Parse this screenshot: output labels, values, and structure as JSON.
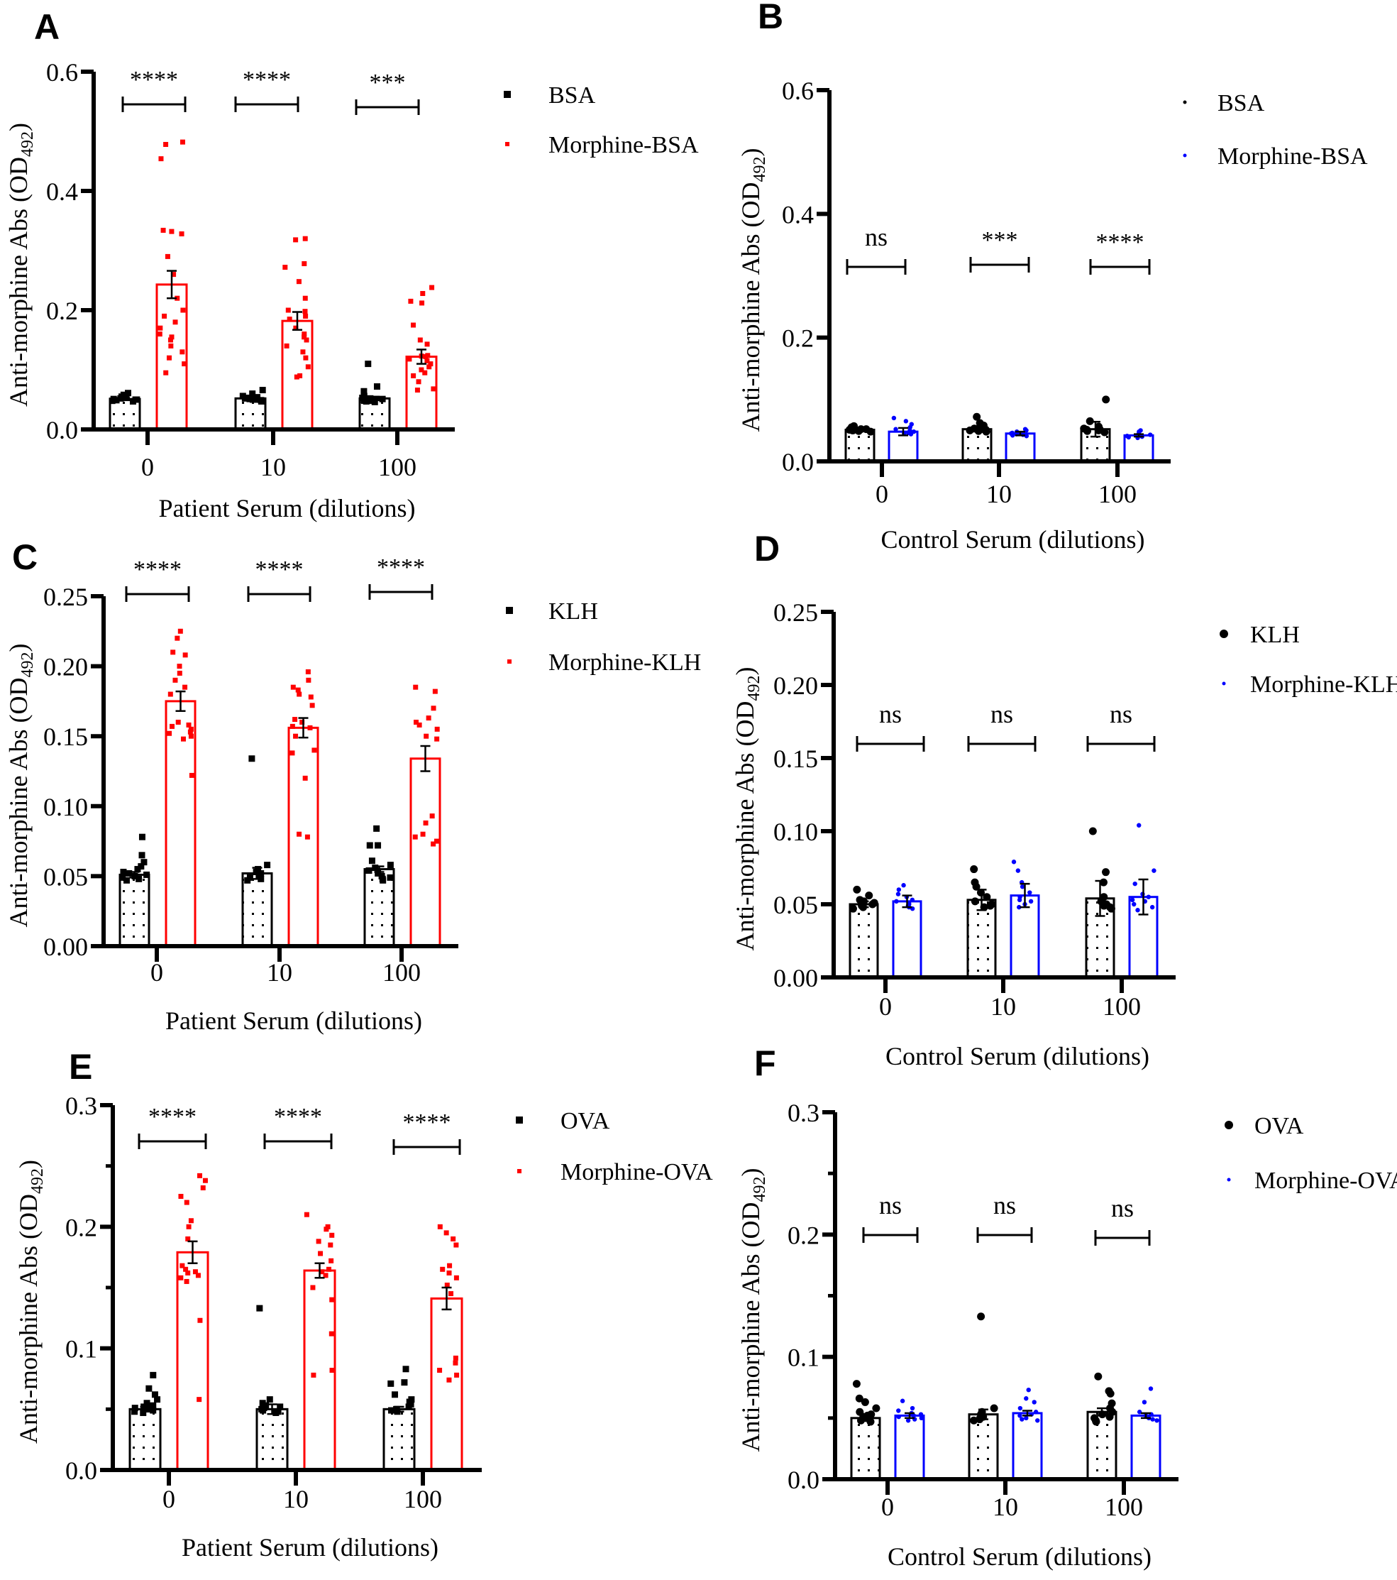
{
  "figure": {
    "panel_labels": [
      "A",
      "B",
      "C",
      "D",
      "E",
      "F"
    ]
  },
  "chart_data": [
    {
      "panel": "A",
      "type": "bar",
      "title": "",
      "xlabel": "Patient Serum (dilutions)",
      "ylabel": "Anti-morphine Abs (OD492)",
      "ylabel_main": "Anti-morphine Abs (OD",
      "ylabel_sub": "492",
      "ylim": [
        0,
        0.6
      ],
      "yticks": [
        "0.0",
        "0.2",
        "0.4",
        "0.6"
      ],
      "ytick_values": [
        0,
        0.2,
        0.4,
        0.6
      ],
      "yminor": [],
      "categories": [
        "0",
        "10",
        "100"
      ],
      "legend": "right",
      "series": [
        {
          "name": "BSA",
          "color": "#000000",
          "fill": "dotted",
          "marker": "square",
          "values": [
            0.051,
            0.052,
            0.052
          ],
          "sem": [
            0.002,
            0.002,
            0.003
          ],
          "points": [
            [
              0.048,
              0.05,
              0.051,
              0.053,
              0.055,
              0.058,
              0.061,
              0.049,
              0.052,
              0.054,
              0.05,
              0.047
            ],
            [
              0.048,
              0.05,
              0.052,
              0.053,
              0.056,
              0.06,
              0.066,
              0.049,
              0.051,
              0.054,
              0.05,
              0.047
            ],
            [
              0.047,
              0.049,
              0.051,
              0.053,
              0.056,
              0.064,
              0.072,
              0.11,
              0.05,
              0.052,
              0.048,
              0.046
            ]
          ]
        },
        {
          "name": "Morphine-BSA",
          "color": "#ff0000",
          "fill": "none",
          "marker": "square",
          "values": [
            0.243,
            0.182,
            0.122
          ],
          "sem": [
            0.023,
            0.015,
            0.012
          ],
          "points": [
            [
              0.478,
              0.482,
              0.454,
              0.334,
              0.332,
              0.328,
              0.29,
              0.26,
              0.22,
              0.2,
              0.19,
              0.18,
              0.17,
              0.16,
              0.155,
              0.15,
              0.14,
              0.13,
              0.12,
              0.11,
              0.095
            ],
            [
              0.318,
              0.32,
              0.278,
              0.272,
              0.248,
              0.22,
              0.2,
              0.198,
              0.19,
              0.185,
              0.17,
              0.16,
              0.155,
              0.15,
              0.14,
              0.13,
              0.12,
              0.105,
              0.09,
              0.088
            ],
            [
              0.238,
              0.228,
              0.215,
              0.212,
              0.175,
              0.15,
              0.143,
              0.124,
              0.123,
              0.122,
              0.118,
              0.115,
              0.11,
              0.105,
              0.1,
              0.095,
              0.09,
              0.08,
              0.068,
              0.066
            ]
          ]
        }
      ],
      "significance": [
        "****",
        "****",
        "***"
      ]
    },
    {
      "panel": "B",
      "type": "bar",
      "title": "",
      "xlabel": "Control Serum (dilutions)",
      "ylabel": "Anti-morphine Abs (OD492)",
      "ylabel_main": "Anti-morphine Abs (OD",
      "ylabel_sub": "492",
      "ylim": [
        0,
        0.6
      ],
      "yticks": [
        "0.0",
        "0.2",
        "0.4",
        "0.6"
      ],
      "ytick_values": [
        0,
        0.2,
        0.4,
        0.6
      ],
      "yminor": [],
      "categories": [
        "0",
        "10",
        "100"
      ],
      "legend": "top-right",
      "series": [
        {
          "name": "BSA",
          "color": "#000000",
          "fill": "dotted",
          "marker": "circle",
          "values": [
            0.051,
            0.052,
            0.052
          ],
          "sem": [
            0.002,
            0.003,
            0.012
          ],
          "points": [
            [
              0.048,
              0.05,
              0.051,
              0.052,
              0.053,
              0.055,
              0.057,
              0.049,
              0.05,
              0.052
            ],
            [
              0.048,
              0.05,
              0.052,
              0.054,
              0.058,
              0.062,
              0.072,
              0.049,
              0.051,
              0.053
            ],
            [
              0.047,
              0.049,
              0.051,
              0.053,
              0.056,
              0.065,
              0.1,
              0.05,
              0.052
            ]
          ]
        },
        {
          "name": "Morphine-BSA",
          "color": "#0000ff",
          "fill": "none",
          "marker": "circle",
          "values": [
            0.048,
            0.045,
            0.042
          ],
          "sem": [
            0.006,
            0.003,
            0.002
          ],
          "points": [
            [
              0.045,
              0.046,
              0.047,
              0.048,
              0.05,
              0.052,
              0.055,
              0.06,
              0.065,
              0.07,
              0.044
            ],
            [
              0.042,
              0.043,
              0.044,
              0.045,
              0.046,
              0.048,
              0.05,
              0.052,
              0.041
            ],
            [
              0.039,
              0.04,
              0.041,
              0.042,
              0.043,
              0.045,
              0.048,
              0.05,
              0.038
            ]
          ]
        }
      ],
      "significance": [
        "ns",
        "***",
        "****"
      ]
    },
    {
      "panel": "C",
      "type": "bar",
      "title": "",
      "xlabel": "Patient Serum (dilutions)",
      "ylabel": "Anti-morphine Abs (OD492)",
      "ylabel_main": "Anti-morphine Abs (OD",
      "ylabel_sub": "492",
      "ylim": [
        0,
        0.25
      ],
      "yticks": [
        "0.00",
        "0.05",
        "0.10",
        "0.15",
        "0.20",
        "0.25"
      ],
      "ytick_values": [
        0,
        0.05,
        0.1,
        0.15,
        0.2,
        0.25
      ],
      "yminor": [],
      "categories": [
        "0",
        "10",
        "100"
      ],
      "legend": "right",
      "series": [
        {
          "name": "KLH",
          "color": "#000000",
          "fill": "dotted",
          "marker": "square",
          "values": [
            0.051,
            0.052,
            0.055
          ],
          "sem": [
            0.002,
            0.004,
            0.002
          ],
          "points": [
            [
              0.078,
              0.065,
              0.06,
              0.057,
              0.055,
              0.053,
              0.052,
              0.051,
              0.05,
              0.049,
              0.048,
              0.047
            ],
            [
              0.134,
              0.058,
              0.055,
              0.053,
              0.052,
              0.051,
              0.05,
              0.049,
              0.048,
              0.047
            ],
            [
              0.084,
              0.072,
              0.072,
              0.061,
              0.058,
              0.056,
              0.054,
              0.052,
              0.05,
              0.049,
              0.048,
              0.047
            ]
          ]
        },
        {
          "name": "Morphine-KLH",
          "color": "#ff0000",
          "fill": "none",
          "marker": "square",
          "values": [
            0.175,
            0.156,
            0.134
          ],
          "sem": [
            0.007,
            0.007,
            0.009
          ],
          "points": [
            [
              0.225,
              0.22,
              0.21,
              0.208,
              0.2,
              0.195,
              0.19,
              0.185,
              0.18,
              0.16,
              0.158,
              0.157,
              0.155,
              0.153,
              0.152,
              0.15,
              0.148,
              0.122
            ],
            [
              0.196,
              0.19,
              0.185,
              0.183,
              0.18,
              0.178,
              0.172,
              0.162,
              0.16,
              0.157,
              0.156,
              0.15,
              0.14,
              0.138,
              0.12,
              0.08,
              0.078
            ],
            [
              0.185,
              0.182,
              0.17,
              0.163,
              0.16,
              0.158,
              0.155,
              0.15,
              0.148,
              0.093,
              0.088,
              0.08,
              0.078,
              0.075,
              0.073
            ]
          ]
        }
      ],
      "significance": [
        "****",
        "****",
        "****"
      ]
    },
    {
      "panel": "D",
      "type": "bar",
      "title": "",
      "xlabel": "Control Serum (dilutions)",
      "ylabel": "Anti-morphine Abs (OD492)",
      "ylabel_main": "Anti-morphine Abs (OD",
      "ylabel_sub": "492",
      "ylim": [
        0,
        0.25
      ],
      "yticks": [
        "0.00",
        "0.05",
        "0.10",
        "0.15",
        "0.20",
        "0.25"
      ],
      "ytick_values": [
        0,
        0.05,
        0.1,
        0.15,
        0.2,
        0.25
      ],
      "yminor": [],
      "categories": [
        "0",
        "10",
        "100"
      ],
      "legend": "top-right",
      "series": [
        {
          "name": "KLH",
          "color": "#000000",
          "fill": "dotted",
          "marker": "circle",
          "values": [
            0.05,
            0.053,
            0.054
          ],
          "sem": [
            0.002,
            0.007,
            0.012
          ],
          "points": [
            [
              0.06,
              0.056,
              0.053,
              0.052,
              0.051,
              0.05,
              0.049,
              0.048,
              0.047
            ],
            [
              0.074,
              0.065,
              0.062,
              0.058,
              0.055,
              0.052,
              0.05,
              0.049,
              0.048
            ],
            [
              0.1,
              0.072,
              0.065,
              0.055,
              0.052,
              0.05,
              0.049,
              0.048,
              0.047
            ]
          ]
        },
        {
          "name": "Morphine-KLH",
          "color": "#0000ff",
          "fill": "none",
          "marker": "circle",
          "values": [
            0.052,
            0.056,
            0.055
          ],
          "sem": [
            0.004,
            0.008,
            0.012
          ],
          "points": [
            [
              0.063,
              0.06,
              0.057,
              0.055,
              0.053,
              0.052,
              0.051,
              0.05,
              0.049,
              0.048,
              0.047
            ],
            [
              0.079,
              0.073,
              0.065,
              0.062,
              0.058,
              0.055,
              0.053,
              0.052,
              0.05,
              0.048
            ],
            [
              0.104,
              0.073,
              0.064,
              0.057,
              0.055,
              0.053,
              0.052,
              0.05,
              0.048,
              0.046
            ]
          ]
        }
      ],
      "significance": [
        "ns",
        "ns",
        "ns"
      ]
    },
    {
      "panel": "E",
      "type": "bar",
      "title": "",
      "xlabel": "Patient Serum (dilutions)",
      "ylabel": "Anti-morphine Abs (OD492)",
      "ylabel_main": "Anti-morphine Abs (OD",
      "ylabel_sub": "492",
      "ylim": [
        0,
        0.3
      ],
      "yticks": [
        "0.0",
        "0.1",
        "0.2",
        "0.3"
      ],
      "ytick_values": [
        0,
        0.1,
        0.2,
        0.3
      ],
      "yminor": [
        0.05,
        0.15,
        0.25
      ],
      "categories": [
        "0",
        "10",
        "100"
      ],
      "legend": "right",
      "series": [
        {
          "name": "OVA",
          "color": "#000000",
          "fill": "dotted",
          "marker": "square",
          "values": [
            0.05,
            0.05,
            0.05
          ],
          "sem": [
            0.002,
            0.004,
            0.002
          ],
          "points": [
            [
              0.078,
              0.067,
              0.062,
              0.058,
              0.055,
              0.053,
              0.052,
              0.051,
              0.05,
              0.049,
              0.048,
              0.047
            ],
            [
              0.133,
              0.058,
              0.055,
              0.053,
              0.052,
              0.051,
              0.05,
              0.049,
              0.048,
              0.047
            ],
            [
              0.083,
              0.072,
              0.071,
              0.062,
              0.058,
              0.056,
              0.054,
              0.052,
              0.05,
              0.049,
              0.048
            ]
          ]
        },
        {
          "name": "Morphine-OVA",
          "color": "#ff0000",
          "fill": "none",
          "marker": "square",
          "values": [
            0.179,
            0.164,
            0.141
          ],
          "sem": [
            0.009,
            0.006,
            0.009
          ],
          "points": [
            [
              0.242,
              0.238,
              0.232,
              0.225,
              0.22,
              0.205,
              0.2,
              0.19,
              0.168,
              0.165,
              0.163,
              0.162,
              0.16,
              0.158,
              0.155,
              0.123,
              0.058
            ],
            [
              0.21,
              0.2,
              0.198,
              0.193,
              0.188,
              0.185,
              0.178,
              0.172,
              0.165,
              0.163,
              0.16,
              0.15,
              0.14,
              0.112,
              0.082,
              0.078
            ],
            [
              0.2,
              0.195,
              0.19,
              0.185,
              0.168,
              0.165,
              0.162,
              0.158,
              0.152,
              0.145,
              0.092,
              0.088,
              0.082,
              0.078,
              0.074
            ]
          ]
        }
      ],
      "significance": [
        "****",
        "****",
        "****"
      ]
    },
    {
      "panel": "F",
      "type": "bar",
      "title": "",
      "xlabel": "Control Serum (dilutions)",
      "ylabel": "Anti-morphine Abs (OD492)",
      "ylabel_main": "Anti-morphine Abs (OD",
      "ylabel_sub": "492",
      "ylim": [
        0,
        0.3
      ],
      "yticks": [
        "0.0",
        "0.1",
        "0.2",
        "0.3"
      ],
      "ytick_values": [
        0,
        0.1,
        0.2,
        0.3
      ],
      "yminor": [
        0.05,
        0.15,
        0.25
      ],
      "categories": [
        "0",
        "10",
        "100"
      ],
      "legend": "top-right",
      "series": [
        {
          "name": "OVA",
          "color": "#000000",
          "fill": "dotted",
          "marker": "circle",
          "values": [
            0.05,
            0.053,
            0.055
          ],
          "sem": [
            0.002,
            0.004,
            0.003
          ],
          "points": [
            [
              0.078,
              0.066,
              0.063,
              0.058,
              0.055,
              0.053,
              0.052,
              0.051,
              0.05,
              0.048,
              0.047
            ],
            [
              0.133,
              0.058,
              0.055,
              0.053,
              0.051,
              0.05,
              0.049,
              0.048
            ],
            [
              0.084,
              0.072,
              0.07,
              0.062,
              0.058,
              0.055,
              0.053,
              0.051,
              0.05,
              0.048,
              0.047
            ]
          ]
        },
        {
          "name": "Morphine-OVA",
          "color": "#0000ff",
          "fill": "none",
          "marker": "circle",
          "values": [
            0.052,
            0.054,
            0.052
          ],
          "sem": [
            0.002,
            0.002,
            0.002
          ],
          "points": [
            [
              0.064,
              0.058,
              0.056,
              0.054,
              0.053,
              0.052,
              0.051,
              0.05,
              0.049,
              0.048
            ],
            [
              0.073,
              0.066,
              0.063,
              0.058,
              0.055,
              0.053,
              0.052,
              0.05,
              0.049,
              0.048
            ],
            [
              0.074,
              0.063,
              0.055,
              0.053,
              0.052,
              0.051,
              0.05,
              0.049,
              0.048
            ]
          ]
        }
      ],
      "significance": [
        "ns",
        "ns",
        "ns"
      ]
    }
  ]
}
